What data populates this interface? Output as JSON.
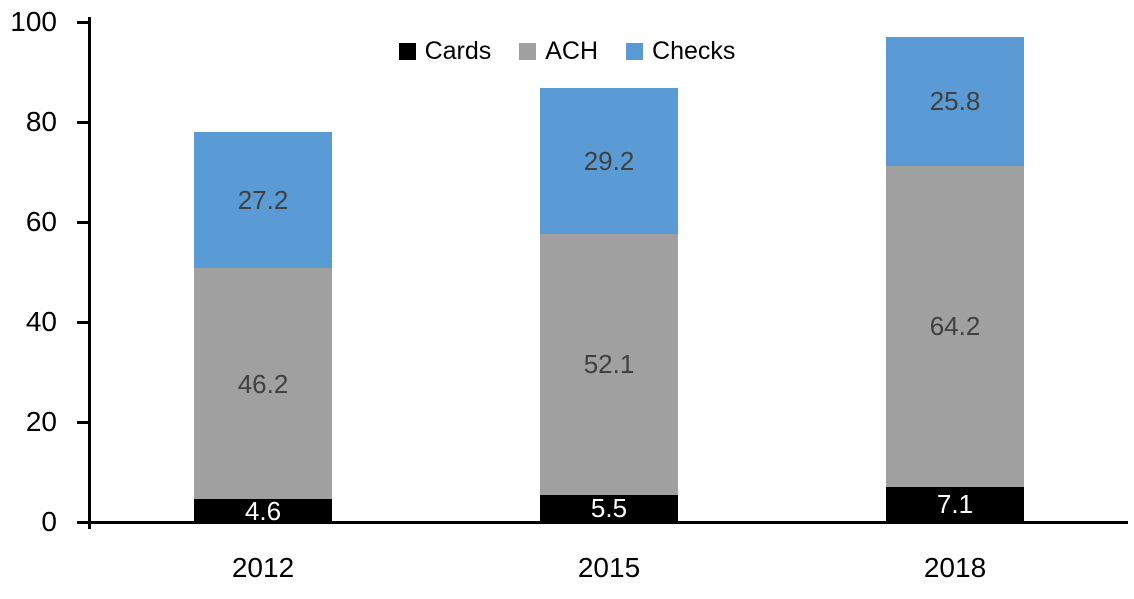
{
  "chart_data": {
    "type": "bar",
    "stacked": true,
    "title": "",
    "xlabel": "",
    "ylabel": "",
    "categories": [
      "2012",
      "2015",
      "2018"
    ],
    "series": [
      {
        "name": "Cards",
        "values": [
          4.6,
          5.5,
          7.1
        ],
        "color": "#000000",
        "label_color": "#FFFFFF"
      },
      {
        "name": "ACH",
        "values": [
          46.2,
          52.1,
          64.2
        ],
        "color": "#A0A0A0",
        "label_color": "#404040"
      },
      {
        "name": "Checks",
        "values": [
          27.2,
          29.2,
          25.8
        ],
        "color": "#5B9BD5",
        "label_color": "#404040"
      }
    ],
    "ylim": [
      0,
      100
    ],
    "yticks": [
      0,
      20,
      40,
      60,
      80,
      100
    ],
    "legend_position": "top",
    "grid": false,
    "axis_color": "#000000"
  }
}
